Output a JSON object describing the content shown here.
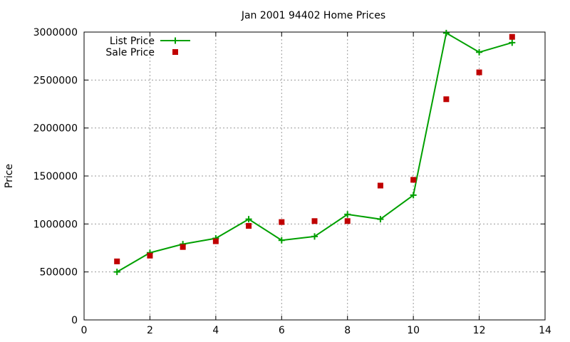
{
  "chart_data": {
    "type": "line",
    "title": "Jan 2001 94402 Home Prices",
    "xlabel": "",
    "ylabel": "Price",
    "xlim": [
      0,
      14
    ],
    "ylim": [
      0,
      3000000
    ],
    "xticks": [
      0,
      2,
      4,
      6,
      8,
      10,
      12,
      14
    ],
    "yticks": [
      0,
      500000,
      1000000,
      1500000,
      2000000,
      2500000,
      3000000
    ],
    "grid": true,
    "legend_position": "top-left",
    "series": [
      {
        "name": "List Price",
        "style": "line-with-plus-markers",
        "color": "#00a000",
        "x": [
          1,
          2,
          3,
          4,
          5,
          6,
          7,
          8,
          9,
          10,
          11,
          12,
          13
        ],
        "y": [
          500000,
          700000,
          790000,
          850000,
          1050000,
          830000,
          870000,
          1100000,
          1050000,
          1300000,
          2990000,
          2790000,
          2890000
        ]
      },
      {
        "name": "Sale Price",
        "style": "square-markers",
        "color": "#c00000",
        "x": [
          1,
          2,
          3,
          4,
          5,
          6,
          7,
          8,
          9,
          10,
          11,
          12,
          13
        ],
        "y": [
          610000,
          670000,
          760000,
          820000,
          980000,
          1020000,
          1030000,
          1030000,
          1400000,
          1460000,
          2300000,
          2580000,
          2950000
        ]
      }
    ]
  }
}
